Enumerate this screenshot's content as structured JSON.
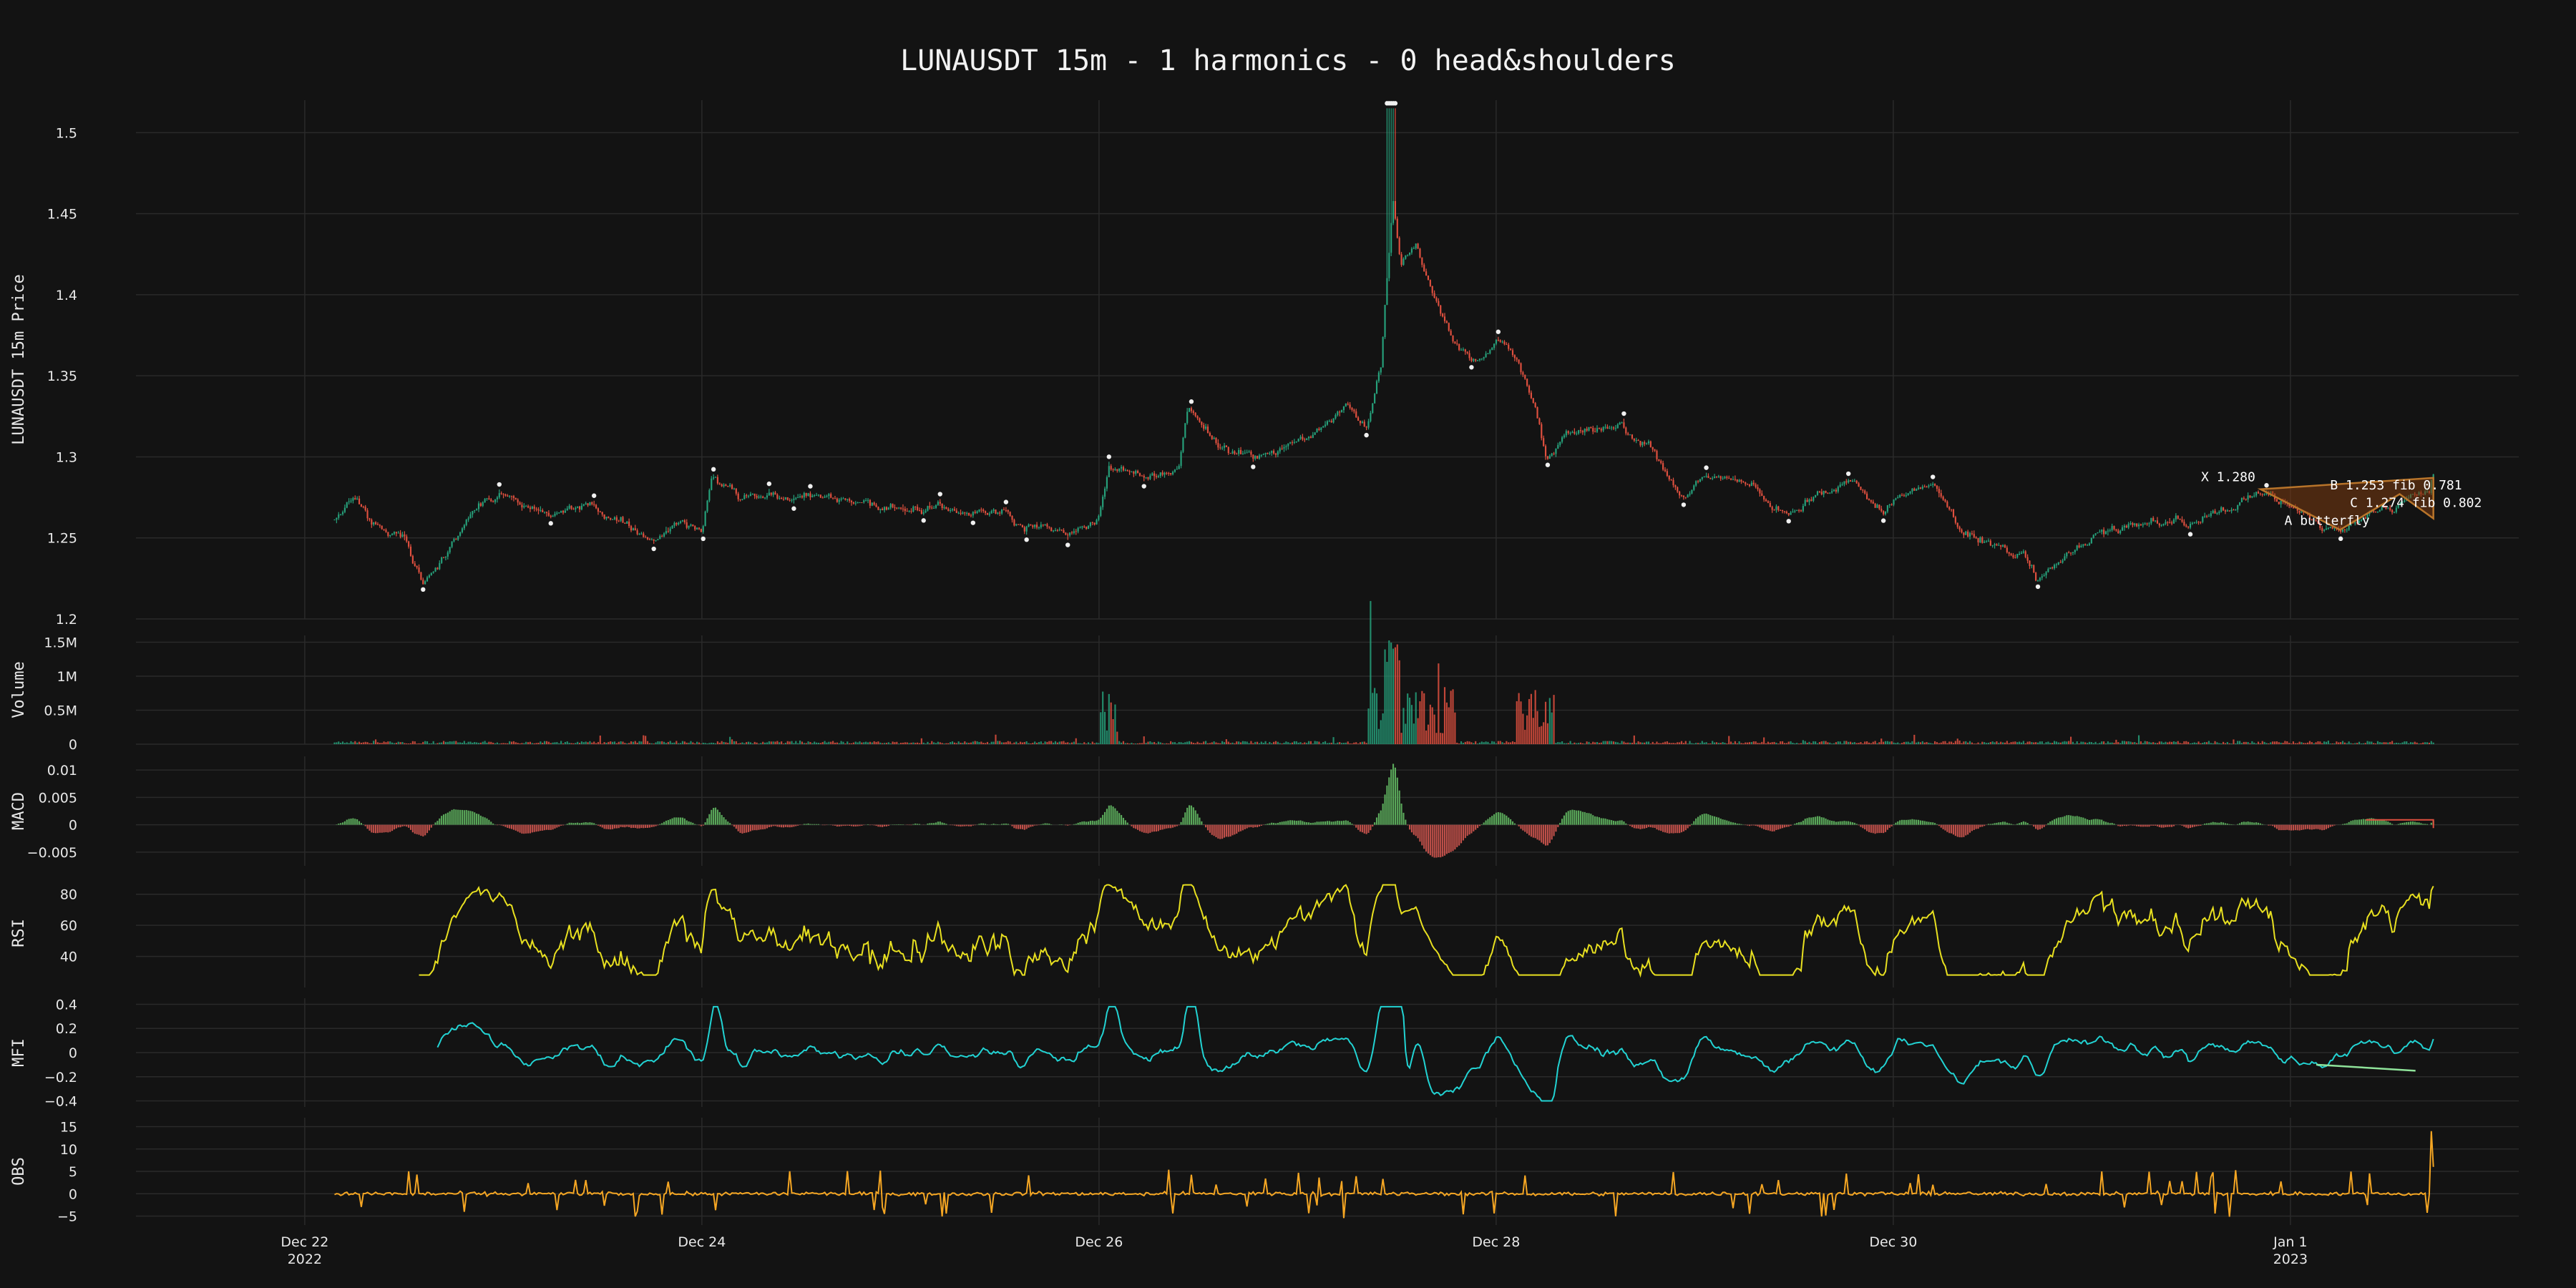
{
  "chart_data": {
    "type": "line",
    "title": "LUNAUSDT 15m  -  1 harmonics  -  0 head&shoulders",
    "x_tick_labels": [
      {
        "t": 0.0,
        "label": "Dec 22",
        "sub": "2022"
      },
      {
        "t": 2.0,
        "label": "Dec 24",
        "sub": ""
      },
      {
        "t": 4.0,
        "label": "Dec 26",
        "sub": ""
      },
      {
        "t": 6.0,
        "label": "Dec 28",
        "sub": ""
      },
      {
        "t": 8.0,
        "label": "Dec 30",
        "sub": ""
      },
      {
        "t": 10.0,
        "label": "Jan 1",
        "sub": "2023"
      }
    ],
    "colors": {
      "up": "#26a17b",
      "down": "#e0503f",
      "rsi": "#e8e020",
      "mfi": "#22d3d3",
      "obs": "#f5a623",
      "pattern_fill": "#7a3b10",
      "pattern_line": "#b8742a",
      "mfi_div": "#8fe39a",
      "macd_up": "#5aa85a",
      "macd_down": "#c0504a"
    },
    "panels": [
      {
        "id": "price",
        "ylabel": "LUNAUSDT 15m Price",
        "ylim": [
          1.2,
          1.52
        ],
        "ticks": [
          "1.2",
          "1.25",
          "1.3",
          "1.35",
          "1.4",
          "1.45",
          "1.5"
        ]
      },
      {
        "id": "volume",
        "ylabel": "Volume",
        "ylim": [
          0,
          1600000
        ],
        "ticks": [
          "0",
          "0.5M",
          "1M",
          "1.5M"
        ]
      },
      {
        "id": "macd",
        "ylabel": "MACD",
        "ylim": [
          -0.0075,
          0.0125
        ],
        "ticks": [
          "−0.005",
          "0",
          "0.005",
          "0.01"
        ]
      },
      {
        "id": "rsi",
        "ylabel": "RSI",
        "ylim": [
          20,
          90
        ],
        "ticks": [
          "40",
          "60",
          "80"
        ]
      },
      {
        "id": "mfi",
        "ylabel": "MFI",
        "ylim": [
          -0.45,
          0.45
        ],
        "ticks": [
          "−0.4",
          "−0.2",
          "0",
          "0.2",
          "0.4"
        ]
      },
      {
        "id": "obs",
        "ylabel": "OBS",
        "ylim": [
          -7,
          17
        ],
        "ticks": [
          "−5",
          "0",
          "5",
          "10",
          "15"
        ]
      }
    ],
    "price_keypoints": [
      [
        0.15,
        1.26
      ],
      [
        0.25,
        1.275
      ],
      [
        0.35,
        1.26
      ],
      [
        0.5,
        1.25
      ],
      [
        0.6,
        1.22
      ],
      [
        0.72,
        1.24
      ],
      [
        0.85,
        1.265
      ],
      [
        1.0,
        1.275
      ],
      [
        1.2,
        1.265
      ],
      [
        1.4,
        1.27
      ],
      [
        1.6,
        1.26
      ],
      [
        1.75,
        1.25
      ],
      [
        1.9,
        1.26
      ],
      [
        2.0,
        1.255
      ],
      [
        2.05,
        1.29
      ],
      [
        2.2,
        1.275
      ],
      [
        2.5,
        1.275
      ],
      [
        2.8,
        1.27
      ],
      [
        3.1,
        1.27
      ],
      [
        3.5,
        1.265
      ],
      [
        3.8,
        1.255
      ],
      [
        3.92,
        1.25
      ],
      [
        4.0,
        1.26
      ],
      [
        4.05,
        1.29
      ],
      [
        4.2,
        1.285
      ],
      [
        4.4,
        1.29
      ],
      [
        4.45,
        1.33
      ],
      [
        4.6,
        1.305
      ],
      [
        4.9,
        1.305
      ],
      [
        5.1,
        1.315
      ],
      [
        5.25,
        1.33
      ],
      [
        5.35,
        1.32
      ],
      [
        5.42,
        1.36
      ],
      [
        5.48,
        1.46
      ],
      [
        5.52,
        1.42
      ],
      [
        5.6,
        1.43
      ],
      [
        5.65,
        1.41
      ],
      [
        5.8,
        1.37
      ],
      [
        5.9,
        1.36
      ],
      [
        6.0,
        1.375
      ],
      [
        6.1,
        1.36
      ],
      [
        6.2,
        1.33
      ],
      [
        6.25,
        1.3
      ],
      [
        6.35,
        1.315
      ],
      [
        6.6,
        1.32
      ],
      [
        6.8,
        1.3
      ],
      [
        6.95,
        1.275
      ],
      [
        7.1,
        1.29
      ],
      [
        7.3,
        1.28
      ],
      [
        7.45,
        1.265
      ],
      [
        7.6,
        1.275
      ],
      [
        7.8,
        1.285
      ],
      [
        7.95,
        1.265
      ],
      [
        8.0,
        1.275
      ],
      [
        8.2,
        1.285
      ],
      [
        8.3,
        1.27
      ],
      [
        8.35,
        1.255
      ],
      [
        8.5,
        1.245
      ],
      [
        8.65,
        1.24
      ],
      [
        8.72,
        1.225
      ],
      [
        8.9,
        1.24
      ],
      [
        9.1,
        1.255
      ],
      [
        9.3,
        1.26
      ],
      [
        9.5,
        1.26
      ],
      [
        9.7,
        1.27
      ],
      [
        9.85,
        1.28
      ],
      [
        10.0,
        1.265
      ],
      [
        10.2,
        1.255
      ],
      [
        10.4,
        1.265
      ],
      [
        10.6,
        1.275
      ],
      [
        10.7,
        1.28
      ],
      [
        10.72,
        1.29
      ]
    ],
    "harmonic_pattern": {
      "points": [
        [
          9.85,
          1.28
        ],
        [
          10.25,
          1.255
        ],
        [
          10.55,
          1.277
        ],
        [
          10.72,
          1.262
        ],
        [
          10.72,
          1.287
        ]
      ],
      "labels": [
        {
          "t": 9.55,
          "p": 1.285,
          "text": "X 1.280"
        },
        {
          "t": 10.2,
          "p": 1.28,
          "text": "B 1.253 fib 0.781"
        },
        {
          "t": 10.3,
          "p": 1.269,
          "text": "C 1.274 fib 0.802"
        },
        {
          "t": 9.97,
          "p": 1.258,
          "text": "A butterfly"
        }
      ]
    }
  }
}
